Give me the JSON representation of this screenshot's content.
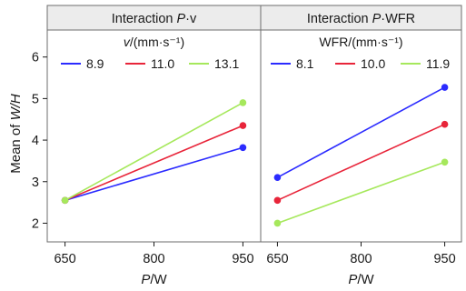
{
  "chart_data": [
    {
      "type": "line",
      "strip_title": "Interaction",
      "strip_title_factor": "P",
      "strip_title_rest": "·v",
      "legend_title_symbol": "v",
      "legend_title_unit": "/(mm·s⁻¹)",
      "xlabel_symbol": "P",
      "xlabel_unit": "/W",
      "ylabel_prefix": "Mean of ",
      "ylabel_symbol": "W/H",
      "x": [
        650,
        950
      ],
      "xticks": [
        650,
        800,
        950
      ],
      "xtick_labels": [
        "650",
        "800",
        "950"
      ],
      "yticks": [
        2,
        3,
        4,
        5,
        6
      ],
      "ytick_labels": [
        "2",
        "3",
        "4",
        "5",
        "6"
      ],
      "xlim": [
        620,
        980
      ],
      "ylim": [
        1.55,
        6.65
      ],
      "legend_placement": "top",
      "series": [
        {
          "name": "8.9",
          "color": "#2b2bff",
          "values": [
            2.55,
            3.82
          ]
        },
        {
          "name": "11.0",
          "color": "#e8253a",
          "values": [
            2.55,
            4.35
          ]
        },
        {
          "name": "13.1",
          "color": "#a6e85c",
          "values": [
            2.55,
            4.9
          ]
        }
      ]
    },
    {
      "type": "line",
      "strip_title": "Interaction",
      "strip_title_factor": "P",
      "strip_title_rest": "·WFR",
      "legend_title_symbol": "",
      "legend_title_unit": "WFR/(mm·s⁻¹)",
      "xlabel_symbol": "P",
      "xlabel_unit": "/W",
      "x": [
        650,
        950
      ],
      "xticks": [
        650,
        800,
        950
      ],
      "xtick_labels": [
        "650",
        "800",
        "950"
      ],
      "xlim": [
        620,
        980
      ],
      "ylim": [
        1.55,
        6.65
      ],
      "legend_placement": "top",
      "series": [
        {
          "name": "8.1",
          "color": "#2b2bff",
          "values": [
            3.1,
            5.27
          ]
        },
        {
          "name": "10.0",
          "color": "#e8253a",
          "values": [
            2.55,
            4.38
          ]
        },
        {
          "name": "11.9",
          "color": "#a6e85c",
          "values": [
            2.0,
            3.47
          ]
        }
      ]
    }
  ]
}
